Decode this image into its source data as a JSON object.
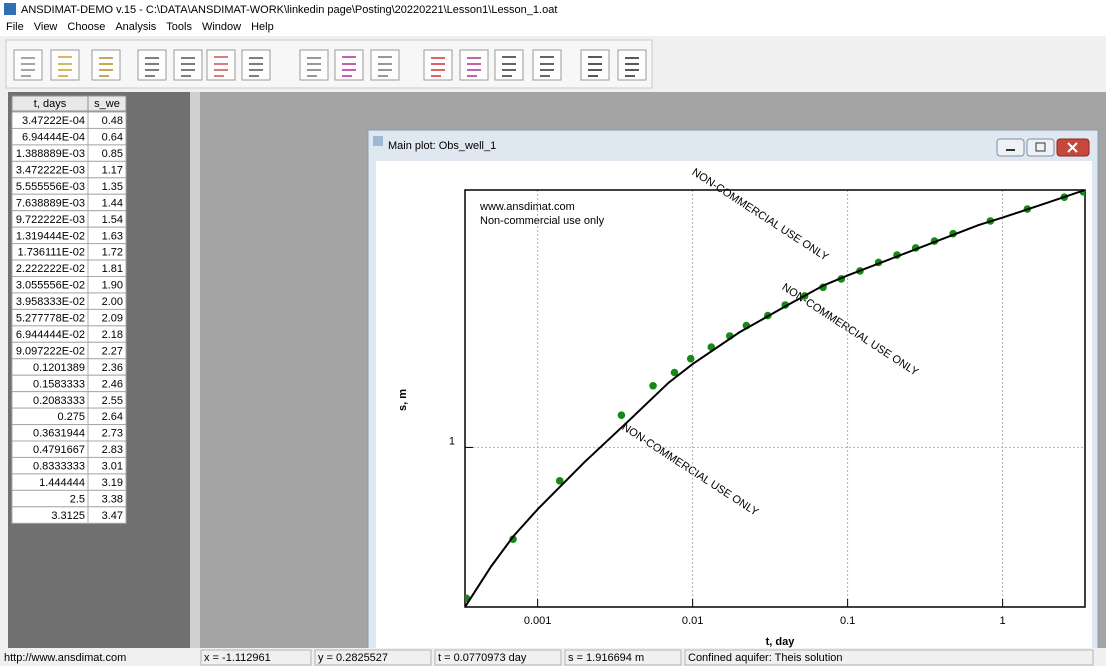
{
  "window": {
    "title": "ANSDIMAT-DEMO v.15 - C:\\DATA\\ANSDIMAT-WORK\\linkedin page\\Posting\\20220221\\Lesson1\\Lesson_1.oat",
    "menu": [
      "File",
      "View",
      "Choose",
      "Analysis",
      "Tools",
      "Window",
      "Help"
    ]
  },
  "table": {
    "header": [
      "t, days",
      "s_we"
    ],
    "rows": [
      [
        "3.47222E-04",
        "0.48"
      ],
      [
        "6.94444E-04",
        "0.64"
      ],
      [
        "1.388889E-03",
        "0.85"
      ],
      [
        "3.472222E-03",
        "1.17"
      ],
      [
        "5.555556E-03",
        "1.35"
      ],
      [
        "7.638889E-03",
        "1.44"
      ],
      [
        "9.722222E-03",
        "1.54"
      ],
      [
        "1.319444E-02",
        "1.63"
      ],
      [
        "1.736111E-02",
        "1.72"
      ],
      [
        "2.222222E-02",
        "1.81"
      ],
      [
        "3.055556E-02",
        "1.90"
      ],
      [
        "3.958333E-02",
        "2.00"
      ],
      [
        "5.277778E-02",
        "2.09"
      ],
      [
        "6.944444E-02",
        "2.18"
      ],
      [
        "9.097222E-02",
        "2.27"
      ],
      [
        "0.1201389",
        "2.36"
      ],
      [
        "0.1583333",
        "2.46"
      ],
      [
        "0.2083333",
        "2.55"
      ],
      [
        "0.275",
        "2.64"
      ],
      [
        "0.3631944",
        "2.73"
      ],
      [
        "0.4791667",
        "2.83"
      ],
      [
        "0.8333333",
        "3.01"
      ],
      [
        "1.444444",
        "3.19"
      ],
      [
        "2.5",
        "3.38"
      ],
      [
        "3.3125",
        "3.47"
      ]
    ]
  },
  "plot_window": {
    "title": "Main plot: Obs_well_1"
  },
  "chart_data": {
    "type": "scatter",
    "xlabel": "t, day",
    "ylabel": "s, m",
    "xscale": "log",
    "yscale": "log",
    "xlim": [
      0.00034,
      3.4
    ],
    "ylim": [
      0.46,
      3.5
    ],
    "xticks": [
      0.001,
      0.01,
      0.1,
      1
    ],
    "yticks": [
      1
    ],
    "grid": true,
    "annotations": [
      "www.ansdimat.com",
      "Non-commercial use only"
    ],
    "watermarks": [
      "NON-COMMERCIAL USE ONLY",
      "NON-COMMERCIAL USE ONLY",
      "NON-COMMERCIAL USE ONLY"
    ],
    "series": [
      {
        "mode": "markers",
        "color": "#168a16",
        "x": [
          0.000347222,
          0.000694444,
          0.001388889,
          0.003472222,
          0.005555556,
          0.007638889,
          0.009722222,
          0.01319444,
          0.01736111,
          0.02222222,
          0.03055556,
          0.03958333,
          0.05277778,
          0.06944444,
          0.09097222,
          0.1201389,
          0.1583333,
          0.2083333,
          0.275,
          0.3631944,
          0.4791667,
          0.8333333,
          1.444444,
          2.5,
          3.3125
        ],
        "values": [
          0.48,
          0.64,
          0.85,
          1.17,
          1.35,
          1.44,
          1.54,
          1.63,
          1.72,
          1.81,
          1.9,
          2.0,
          2.09,
          2.18,
          2.27,
          2.36,
          2.46,
          2.55,
          2.64,
          2.73,
          2.83,
          3.01,
          3.19,
          3.38,
          3.47
        ]
      },
      {
        "mode": "line",
        "color": "#000000",
        "x": [
          0.00034,
          0.0005,
          0.0007,
          0.001,
          0.002,
          0.004,
          0.007,
          0.01,
          0.02,
          0.04,
          0.07,
          0.1,
          0.2,
          0.4,
          0.7,
          1,
          2,
          3.4
        ],
        "values": [
          0.46,
          0.56,
          0.65,
          0.74,
          0.93,
          1.15,
          1.37,
          1.5,
          1.75,
          1.99,
          2.2,
          2.31,
          2.52,
          2.75,
          2.95,
          3.06,
          3.3,
          3.5
        ]
      }
    ]
  },
  "status_bar": [
    "http://www.ansdimat.com",
    "x = -1.112961",
    "y = 0.2825527",
    "t = 0.0770973 day",
    "s = 1.916694 m",
    "Confined aquifer: Theis solution"
  ]
}
